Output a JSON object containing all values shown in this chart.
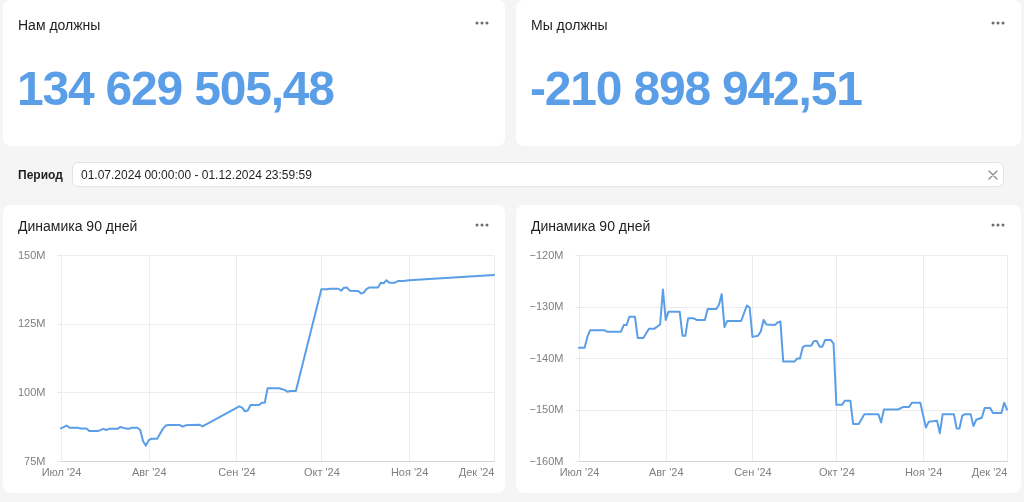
{
  "chart_data": [
    {
      "type": "other",
      "title": "Нам должны",
      "annotations": [
        "134 629 505,48"
      ],
      "color": "#5b9ee8"
    },
    {
      "type": "other",
      "title": "Мы должны",
      "annotations": [
        "-210 898 942,51"
      ],
      "color": "#5b9ee8"
    },
    {
      "type": "other",
      "title": "Период",
      "annotations": [
        "01.07.2024 00:00:00 - 01.12.2024 23:59:59"
      ]
    },
    {
      "type": "line",
      "title": "Динамика 90 дней",
      "x": [
        "2024-07-01",
        "2024-07-03",
        "2024-07-04",
        "2024-07-07",
        "2024-07-08",
        "2024-07-10",
        "2024-07-11",
        "2024-07-14",
        "2024-07-16",
        "2024-07-17",
        "2024-07-18",
        "2024-07-21",
        "2024-07-22",
        "2024-07-24",
        "2024-07-25",
        "2024-07-26",
        "2024-07-28",
        "2024-07-29",
        "2024-07-30",
        "2024-07-31",
        "2024-08-01",
        "2024-08-02",
        "2024-08-04",
        "2024-08-06",
        "2024-08-07",
        "2024-08-08",
        "2024-08-12",
        "2024-08-13",
        "2024-08-14",
        "2024-08-16",
        "2024-08-19",
        "2024-08-20",
        "2024-09-02",
        "2024-09-03",
        "2024-09-04",
        "2024-09-05",
        "2024-09-06",
        "2024-09-09",
        "2024-09-10",
        "2024-09-11",
        "2024-09-12",
        "2024-09-16",
        "2024-09-18",
        "2024-09-19",
        "2024-09-20",
        "2024-09-22",
        "2024-10-01",
        "2024-10-03",
        "2024-10-04",
        "2024-10-07",
        "2024-10-08",
        "2024-10-09",
        "2024-10-10",
        "2024-10-11",
        "2024-10-14",
        "2024-10-15",
        "2024-10-16",
        "2024-10-17",
        "2024-10-18",
        "2024-10-21",
        "2024-10-22",
        "2024-10-23",
        "2024-10-24",
        "2024-10-25",
        "2024-10-27",
        "2024-10-28",
        "2024-10-30",
        "2024-11-01",
        "2024-12-01"
      ],
      "series": [
        {
          "color": "#5b9ee8",
          "values": [
            86.9,
            87.9,
            87.1,
            87.1,
            86.8,
            86.8,
            85.9,
            85.9,
            86.7,
            86.3,
            86.7,
            86.7,
            87.4,
            86.8,
            86.7,
            87.1,
            87.1,
            86.3,
            82.2,
            80.6,
            82.6,
            83.1,
            83.1,
            86.7,
            87.9,
            88.1,
            88.1,
            87.5,
            88.0,
            88.1,
            88.2,
            87.6,
            94.9,
            94.4,
            93.1,
            93.4,
            95.4,
            95.4,
            96.2,
            96.2,
            101.5,
            101.5,
            100.9,
            100.2,
            100.5,
            100.5,
            137.5,
            137.5,
            137.7,
            137.7,
            137.0,
            138.1,
            138.2,
            137.0,
            136.9,
            136.0,
            136.3,
            137.7,
            138.2,
            138.2,
            139.9,
            139.7,
            140.8,
            139.9,
            139.9,
            140.5,
            140.5,
            140.8,
            142.7
          ]
        }
      ],
      "xlim": [
        "2024-07-01",
        "2024-12-01"
      ],
      "xticks": [
        {
          "value": "2024-07-01",
          "label": "Июл '24"
        },
        {
          "value": "2024-08-01",
          "label": "Авг '24"
        },
        {
          "value": "2024-09-01",
          "label": "Сен '24"
        },
        {
          "value": "2024-10-01",
          "label": "Окт '24"
        },
        {
          "value": "2024-11-01",
          "label": "Ноя '24"
        },
        {
          "value": "2024-12-01",
          "label": "Дек '24"
        }
      ],
      "ylim": [
        75,
        150
      ],
      "yticks": [
        {
          "value": 75,
          "label": "75M"
        },
        {
          "value": 100,
          "label": "100M"
        },
        {
          "value": 125,
          "label": "125M"
        },
        {
          "value": 150,
          "label": "150M"
        }
      ],
      "grid": true
    },
    {
      "type": "line",
      "title": "Динамика 90 дней",
      "x": [
        "2024-07-01",
        "2024-07-03",
        "2024-07-04",
        "2024-07-05",
        "2024-07-10",
        "2024-07-11",
        "2024-07-16",
        "2024-07-17",
        "2024-07-18",
        "2024-07-19",
        "2024-07-21",
        "2024-07-22",
        "2024-07-24",
        "2024-07-26",
        "2024-07-28",
        "2024-07-30",
        "2024-07-31",
        "2024-08-01",
        "2024-08-02",
        "2024-08-06",
        "2024-08-07",
        "2024-08-08",
        "2024-08-09",
        "2024-08-11",
        "2024-08-12",
        "2024-08-15",
        "2024-08-16",
        "2024-08-19",
        "2024-08-20",
        "2024-08-21",
        "2024-08-22",
        "2024-08-23",
        "2024-08-28",
        "2024-08-29",
        "2024-08-30",
        "2024-08-31",
        "2024-09-01",
        "2024-09-03",
        "2024-09-04",
        "2024-09-05",
        "2024-09-06",
        "2024-09-09",
        "2024-09-10",
        "2024-09-11",
        "2024-09-12",
        "2024-09-16",
        "2024-09-17",
        "2024-09-18",
        "2024-09-19",
        "2024-09-20",
        "2024-09-22",
        "2024-09-23",
        "2024-09-24",
        "2024-09-25",
        "2024-09-26",
        "2024-09-27",
        "2024-09-29",
        "2024-09-30",
        "2024-10-01",
        "2024-10-03",
        "2024-10-04",
        "2024-10-06",
        "2024-10-07",
        "2024-10-09",
        "2024-10-11",
        "2024-10-16",
        "2024-10-17",
        "2024-10-18",
        "2024-10-23",
        "2024-10-25",
        "2024-10-27",
        "2024-10-28",
        "2024-10-31",
        "2024-11-02",
        "2024-11-03",
        "2024-11-06",
        "2024-11-07",
        "2024-11-08",
        "2024-11-12",
        "2024-11-13",
        "2024-11-14",
        "2024-11-15",
        "2024-11-16",
        "2024-11-18",
        "2024-11-19",
        "2024-11-20",
        "2024-11-22",
        "2024-11-23",
        "2024-11-25",
        "2024-11-26",
        "2024-11-29",
        "2024-11-30",
        "2024-12-01"
      ],
      "series": [
        {
          "color": "#5b9ee8",
          "values": [
            -138.0,
            -138.0,
            -135.9,
            -134.6,
            -134.6,
            -134.9,
            -134.9,
            -133.6,
            -133.6,
            -132.0,
            -132.0,
            -136.1,
            -136.1,
            -134.3,
            -134.3,
            -133.5,
            -126.7,
            -132.6,
            -131.0,
            -131.0,
            -135.7,
            -135.7,
            -132.3,
            -132.3,
            -132.6,
            -132.6,
            -130.5,
            -130.5,
            -129.7,
            -127.6,
            -134.0,
            -132.8,
            -132.8,
            -131.3,
            -129.8,
            -130.2,
            -135.9,
            -135.7,
            -134.8,
            -132.6,
            -133.5,
            -133.6,
            -133.1,
            -132.9,
            -140.7,
            -140.7,
            -140.1,
            -140.1,
            -137.9,
            -137.6,
            -137.6,
            -136.7,
            -136.7,
            -137.8,
            -137.8,
            -136.5,
            -136.5,
            -137.2,
            -149.1,
            -149.1,
            -148.3,
            -148.3,
            -152.8,
            -152.8,
            -150.9,
            -150.9,
            -152.5,
            -150.0,
            -150.0,
            -149.5,
            -149.5,
            -148.7,
            -148.7,
            -153.5,
            -152.4,
            -152.2,
            -154.6,
            -150.9,
            -150.9,
            -153.7,
            -153.7,
            -151.2,
            -150.9,
            -150.9,
            -153.2,
            -152.0,
            -151.6,
            -149.7,
            -149.7,
            -150.7,
            -150.7,
            -148.7,
            -150.0
          ]
        }
      ],
      "xlim": [
        "2024-07-01",
        "2024-12-01"
      ],
      "xticks": [
        {
          "value": "2024-07-01",
          "label": "Июл '24"
        },
        {
          "value": "2024-08-01",
          "label": "Авг '24"
        },
        {
          "value": "2024-09-01",
          "label": "Сен '24"
        },
        {
          "value": "2024-10-01",
          "label": "Окт '24"
        },
        {
          "value": "2024-11-01",
          "label": "Ноя '24"
        },
        {
          "value": "2024-12-01",
          "label": "Дек '24"
        }
      ],
      "ylim": [
        -160,
        -120
      ],
      "yticks": [
        {
          "value": -160,
          "label": "−160M"
        },
        {
          "value": -150,
          "label": "−150M"
        },
        {
          "value": -140,
          "label": "−140M"
        },
        {
          "value": -130,
          "label": "−130M"
        },
        {
          "value": -120,
          "label": "−120M"
        }
      ],
      "grid": true
    }
  ]
}
